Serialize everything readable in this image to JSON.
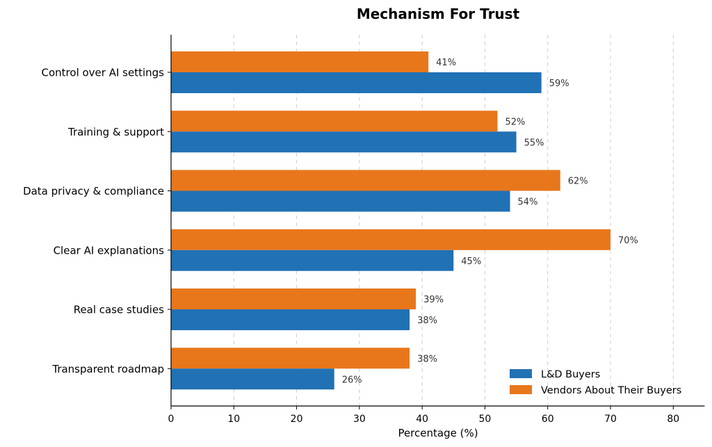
{
  "chart_data": {
    "type": "bar",
    "orientation": "horizontal",
    "title": "Mechanism For Trust",
    "xlabel": "Percentage (%)",
    "ylabel": "",
    "xlim": [
      0,
      85
    ],
    "xticks": [
      0,
      10,
      20,
      30,
      40,
      50,
      60,
      70,
      80
    ],
    "categories": [
      "Control over AI settings",
      "Training & support",
      "Data privacy & compliance",
      "Clear AI explanations",
      "Real case studies",
      "Transparent roadmap"
    ],
    "series": [
      {
        "name": "L&D Buyers",
        "color": "#2171b5",
        "values": [
          59,
          55,
          54,
          45,
          38,
          26
        ]
      },
      {
        "name": "Vendors About Their Buyers",
        "color": "#e8771b",
        "values": [
          41,
          52,
          62,
          70,
          39,
          38
        ]
      }
    ],
    "value_suffix": "%",
    "grid": "vertical dashed",
    "legend_position": "bottom-right"
  }
}
